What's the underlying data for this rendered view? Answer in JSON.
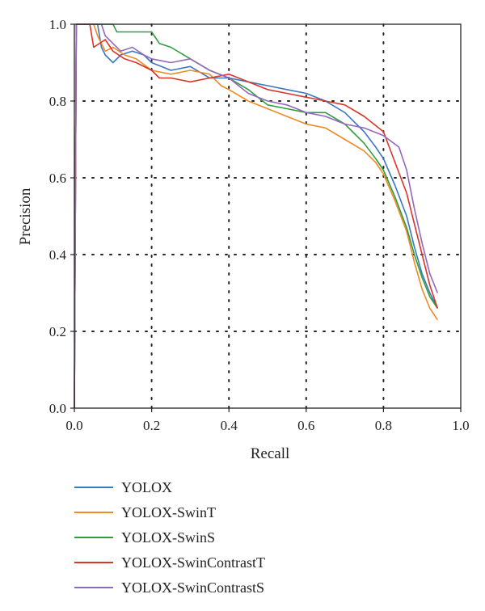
{
  "chart_data": {
    "type": "line",
    "title": "",
    "xlabel": "Recall",
    "ylabel": "Precision",
    "xlim": [
      0.0,
      1.0
    ],
    "ylim": [
      0.0,
      1.0
    ],
    "xticks": [
      "0.0",
      "0.2",
      "0.4",
      "0.6",
      "0.8",
      "1.0"
    ],
    "yticks": [
      "0.0",
      "0.2",
      "0.4",
      "0.6",
      "0.8",
      "1.0"
    ],
    "grid": true,
    "legend_position": "bottom",
    "series": [
      {
        "name": "YOLOX",
        "color": "#3a78bf",
        "x": [
          0.0,
          0.005,
          0.02,
          0.06,
          0.07,
          0.08,
          0.1,
          0.12,
          0.15,
          0.18,
          0.2,
          0.25,
          0.3,
          0.35,
          0.4,
          0.45,
          0.5,
          0.55,
          0.6,
          0.65,
          0.7,
          0.75,
          0.78,
          0.8,
          0.83,
          0.86,
          0.88,
          0.9,
          0.92,
          0.94
        ],
        "y": [
          0.0,
          1.0,
          1.0,
          1.0,
          0.94,
          0.92,
          0.9,
          0.92,
          0.93,
          0.92,
          0.9,
          0.88,
          0.89,
          0.86,
          0.86,
          0.85,
          0.84,
          0.83,
          0.82,
          0.8,
          0.77,
          0.72,
          0.68,
          0.65,
          0.58,
          0.5,
          0.42,
          0.35,
          0.3,
          0.26
        ]
      },
      {
        "name": "YOLOX-SwinT",
        "color": "#f08a24",
        "x": [
          0.0,
          0.005,
          0.05,
          0.06,
          0.08,
          0.1,
          0.13,
          0.16,
          0.2,
          0.25,
          0.3,
          0.35,
          0.38,
          0.4,
          0.45,
          0.5,
          0.55,
          0.6,
          0.65,
          0.7,
          0.75,
          0.78,
          0.8,
          0.83,
          0.86,
          0.88,
          0.9,
          0.92,
          0.94
        ],
        "y": [
          0.0,
          1.0,
          1.0,
          0.97,
          0.93,
          0.94,
          0.92,
          0.91,
          0.88,
          0.87,
          0.88,
          0.87,
          0.84,
          0.83,
          0.8,
          0.78,
          0.76,
          0.74,
          0.73,
          0.7,
          0.67,
          0.64,
          0.61,
          0.54,
          0.46,
          0.38,
          0.31,
          0.26,
          0.23
        ]
      },
      {
        "name": "YOLOX-SwinS",
        "color": "#2e9e3e",
        "x": [
          0.0,
          0.005,
          0.1,
          0.11,
          0.15,
          0.2,
          0.22,
          0.25,
          0.3,
          0.35,
          0.4,
          0.45,
          0.5,
          0.55,
          0.6,
          0.65,
          0.7,
          0.75,
          0.78,
          0.8,
          0.83,
          0.86,
          0.88,
          0.9,
          0.92,
          0.94
        ],
        "y": [
          0.0,
          1.0,
          1.0,
          0.98,
          0.98,
          0.98,
          0.95,
          0.94,
          0.91,
          0.88,
          0.86,
          0.83,
          0.79,
          0.78,
          0.77,
          0.77,
          0.74,
          0.69,
          0.65,
          0.62,
          0.55,
          0.47,
          0.4,
          0.34,
          0.29,
          0.26
        ]
      },
      {
        "name": "YOLOX-SwinContrastT",
        "color": "#d9352a",
        "x": [
          0.0,
          0.005,
          0.04,
          0.05,
          0.08,
          0.1,
          0.13,
          0.16,
          0.2,
          0.22,
          0.25,
          0.3,
          0.35,
          0.4,
          0.45,
          0.5,
          0.55,
          0.6,
          0.65,
          0.7,
          0.75,
          0.8,
          0.83,
          0.86,
          0.88,
          0.9,
          0.92,
          0.94
        ],
        "y": [
          0.0,
          1.0,
          1.0,
          0.94,
          0.96,
          0.93,
          0.91,
          0.9,
          0.88,
          0.86,
          0.86,
          0.85,
          0.86,
          0.87,
          0.85,
          0.83,
          0.82,
          0.81,
          0.8,
          0.79,
          0.76,
          0.72,
          0.64,
          0.56,
          0.48,
          0.4,
          0.32,
          0.26
        ]
      },
      {
        "name": "YOLOX-SwinContrastS",
        "color": "#9467bd",
        "x": [
          0.0,
          0.005,
          0.07,
          0.08,
          0.1,
          0.12,
          0.15,
          0.18,
          0.2,
          0.25,
          0.3,
          0.35,
          0.4,
          0.45,
          0.5,
          0.55,
          0.6,
          0.65,
          0.7,
          0.75,
          0.8,
          0.84,
          0.86,
          0.88,
          0.9,
          0.92,
          0.94
        ],
        "y": [
          0.0,
          1.0,
          1.0,
          0.97,
          0.95,
          0.93,
          0.94,
          0.92,
          0.91,
          0.9,
          0.91,
          0.88,
          0.86,
          0.82,
          0.8,
          0.79,
          0.77,
          0.76,
          0.74,
          0.73,
          0.71,
          0.68,
          0.62,
          0.52,
          0.43,
          0.35,
          0.3
        ]
      }
    ]
  }
}
